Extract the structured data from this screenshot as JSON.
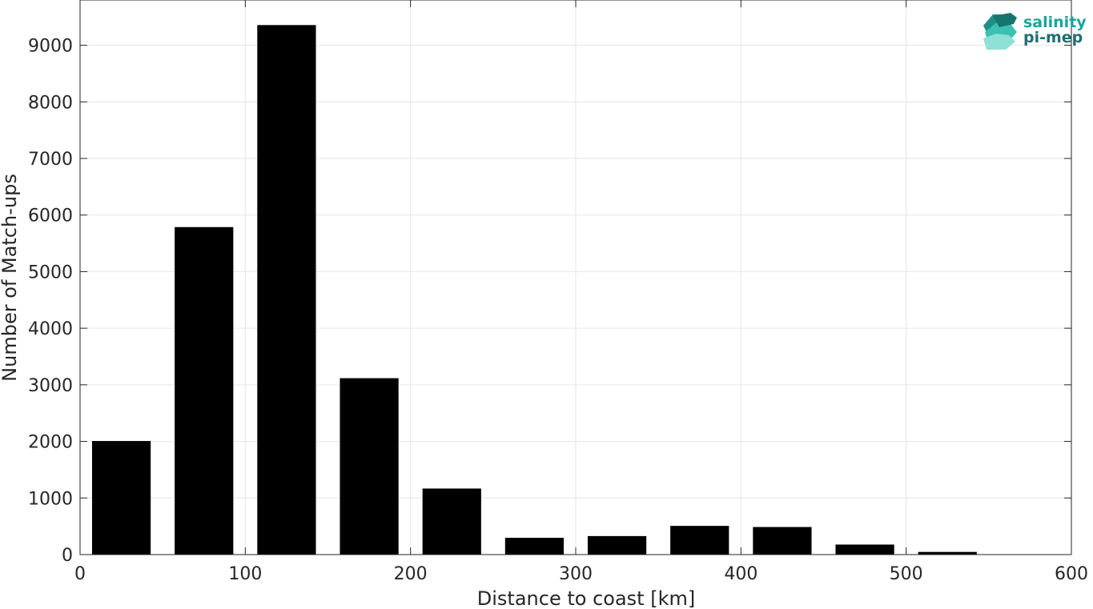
{
  "chart_data": {
    "type": "bar",
    "xlabel": "Distance to coast [km]",
    "ylabel": "Number of Match-ups",
    "xlim": [
      0,
      600
    ],
    "ylim": [
      0,
      9800
    ],
    "xticks": [
      0,
      100,
      200,
      300,
      400,
      500,
      600
    ],
    "yticks": [
      0,
      1000,
      2000,
      3000,
      4000,
      5000,
      6000,
      7000,
      8000,
      9000
    ],
    "grid": true,
    "bar_width": 35,
    "x": [
      25,
      75,
      125,
      175,
      225,
      275,
      325,
      375,
      425,
      475,
      525,
      575
    ],
    "values": [
      2000,
      5780,
      9350,
      3110,
      1160,
      290,
      320,
      500,
      480,
      170,
      40,
      0
    ],
    "colors": {
      "bar": "#000000",
      "axis": "#262626",
      "grid": "#e6e6e6"
    }
  },
  "logo": {
    "line1": "salinity",
    "line2": "pi-mep",
    "color1": "#1aa59a",
    "color2": "#1f6f73"
  }
}
